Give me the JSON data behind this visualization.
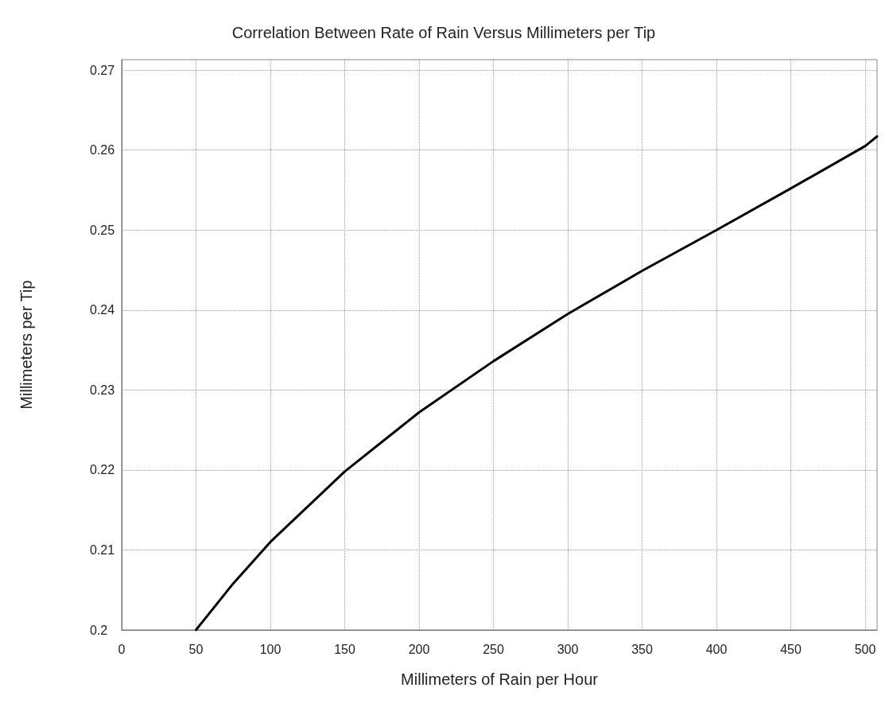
{
  "chart_data": {
    "type": "line",
    "title": "Correlation Between Rate of Rain Versus Millimeters per Tip",
    "xlabel": "Millimeters of Rain per Hour",
    "ylabel": "Millimeters per Tip",
    "series": [
      {
        "color": "#000000",
        "x": [
          50,
          75,
          100,
          150,
          200,
          250,
          300,
          350,
          400,
          450,
          500,
          508
        ],
        "values": [
          0.2,
          0.2058,
          0.211,
          0.2198,
          0.2272,
          0.2336,
          0.2395,
          0.2449,
          0.25,
          0.2552,
          0.2605,
          0.2617
        ]
      }
    ],
    "xlim": [
      0,
      508
    ],
    "xticks": [
      0,
      50,
      100,
      150,
      200,
      250,
      300,
      350,
      400,
      450,
      500
    ],
    "ylim": [
      0.2,
      0.2713
    ],
    "yticks": [
      0.2,
      0.21,
      0.22,
      0.23,
      0.24,
      0.25,
      0.26,
      0.27
    ],
    "grid": true,
    "marker": "none",
    "line_style": "solid"
  }
}
